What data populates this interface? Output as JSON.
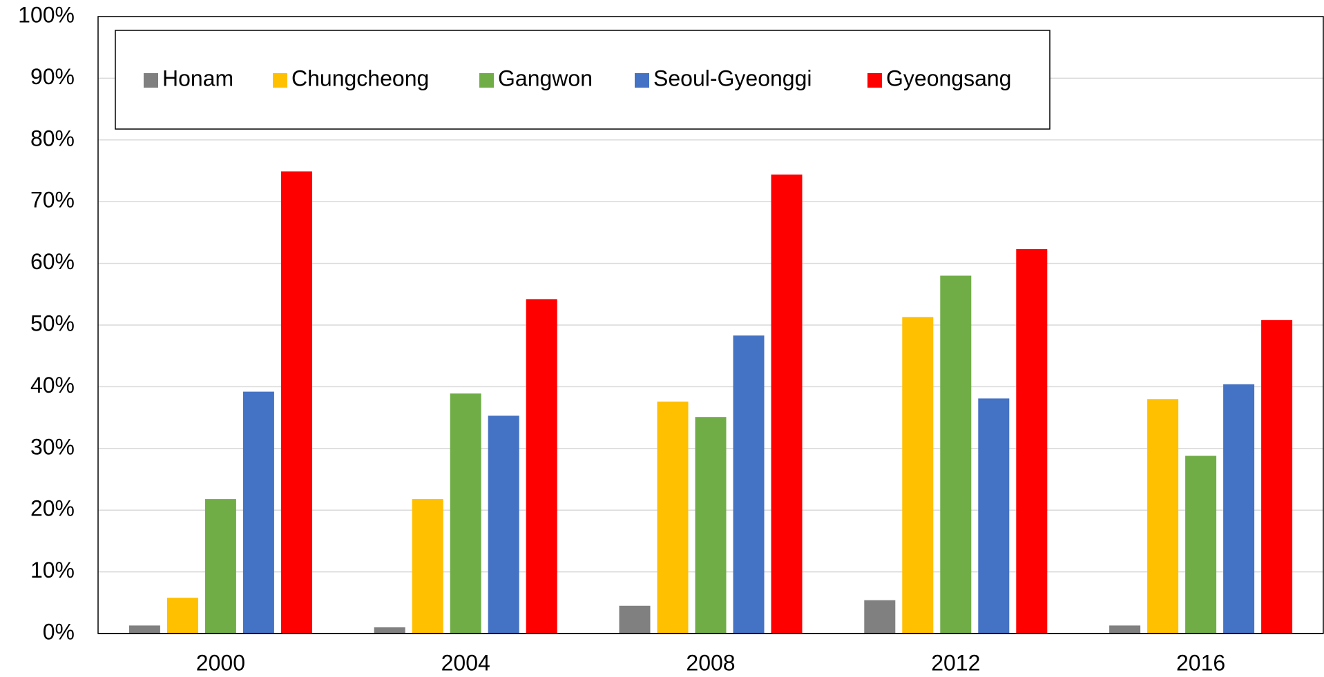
{
  "chart_data": {
    "type": "bar",
    "categories": [
      "2000",
      "2004",
      "2008",
      "2012",
      "2016"
    ],
    "series": [
      {
        "name": "Honam",
        "color": "#808080",
        "values": [
          1.3,
          1.0,
          4.5,
          5.4,
          1.3
        ]
      },
      {
        "name": "Chungcheong",
        "color": "#ffc000",
        "values": [
          5.8,
          21.8,
          37.6,
          51.3,
          38.0
        ]
      },
      {
        "name": "Gangwon",
        "color": "#70ad47",
        "values": [
          21.8,
          38.9,
          35.1,
          58.0,
          28.8
        ]
      },
      {
        "name": "Seoul-Gyeonggi",
        "color": "#4472c4",
        "values": [
          39.2,
          35.3,
          48.3,
          38.1,
          40.4
        ]
      },
      {
        "name": "Gyeongsang",
        "color": "#ff0000",
        "values": [
          74.9,
          54.2,
          74.4,
          62.3,
          50.8
        ]
      }
    ],
    "ylim": [
      0,
      100
    ],
    "yticks": [
      {
        "value": 0,
        "label": "0%"
      },
      {
        "value": 10,
        "label": "10%"
      },
      {
        "value": 20,
        "label": "20%"
      },
      {
        "value": 30,
        "label": "30%"
      },
      {
        "value": 40,
        "label": "40%"
      },
      {
        "value": 50,
        "label": "50%"
      },
      {
        "value": 60,
        "label": "60%"
      },
      {
        "value": 70,
        "label": "70%"
      },
      {
        "value": 80,
        "label": "80%"
      },
      {
        "value": 90,
        "label": "90%"
      },
      {
        "value": 100,
        "label": "100%"
      }
    ],
    "grid": true,
    "legend": "top"
  }
}
